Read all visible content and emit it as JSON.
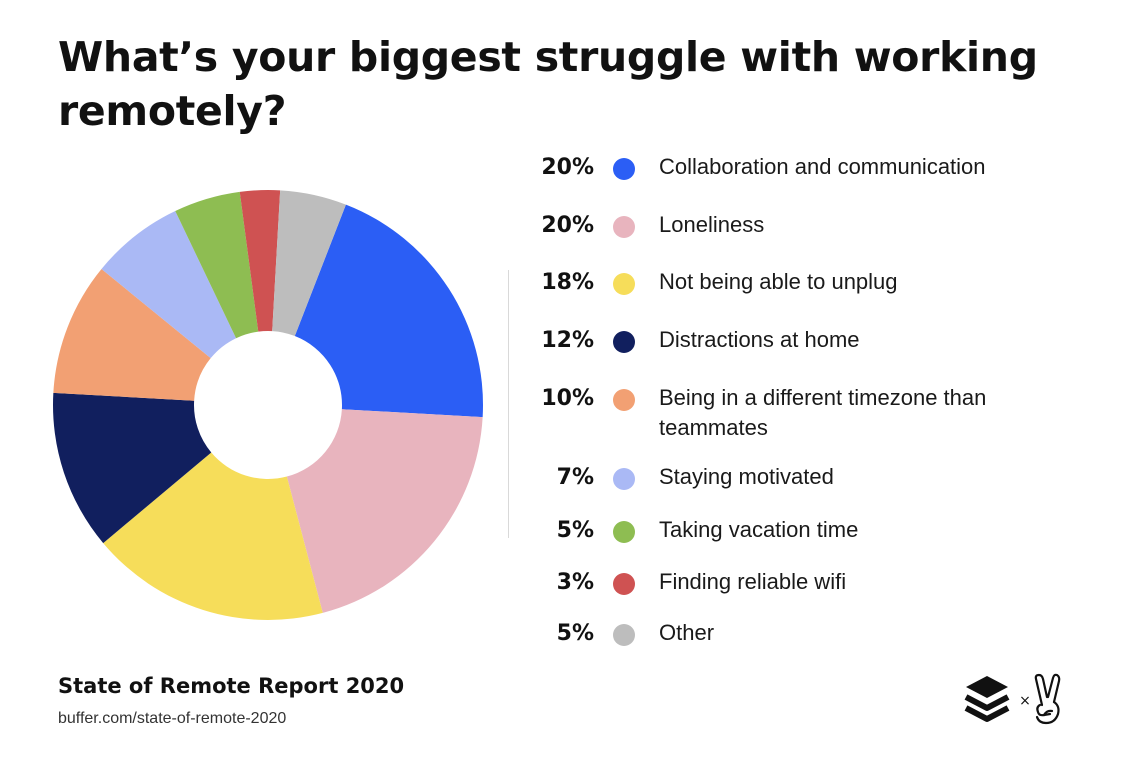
{
  "title": "What’s your biggest struggle with working remotely?",
  "footer": {
    "report": "State of Remote Report 2020",
    "url": "buffer.com/state-of-remote-2020"
  },
  "brand": {
    "left_icon": "buffer-layers-icon",
    "separator": "×",
    "right_icon": "peace-hand-icon"
  },
  "chart_data": {
    "type": "pie",
    "donut": true,
    "unit": "%",
    "categories": [
      "Collaboration and communication",
      "Loneliness",
      "Not being able to unplug",
      "Distractions at home",
      "Being in a different timezone than teammates",
      "Staying motivated",
      "Taking vacation time",
      "Finding reliable wifi",
      "Other"
    ],
    "values": [
      20,
      20,
      18,
      12,
      10,
      7,
      5,
      3,
      5
    ],
    "labels": [
      "20%",
      "20%",
      "18%",
      "12%",
      "10%",
      "7%",
      "5%",
      "3%",
      "5%"
    ],
    "colors": [
      "#2b5ef5",
      "#e8b4be",
      "#f6dd5a",
      "#111f5e",
      "#f2a073",
      "#aab9f5",
      "#8ebd52",
      "#cf5252",
      "#bdbdbd"
    ],
    "legend_placement": "right"
  }
}
